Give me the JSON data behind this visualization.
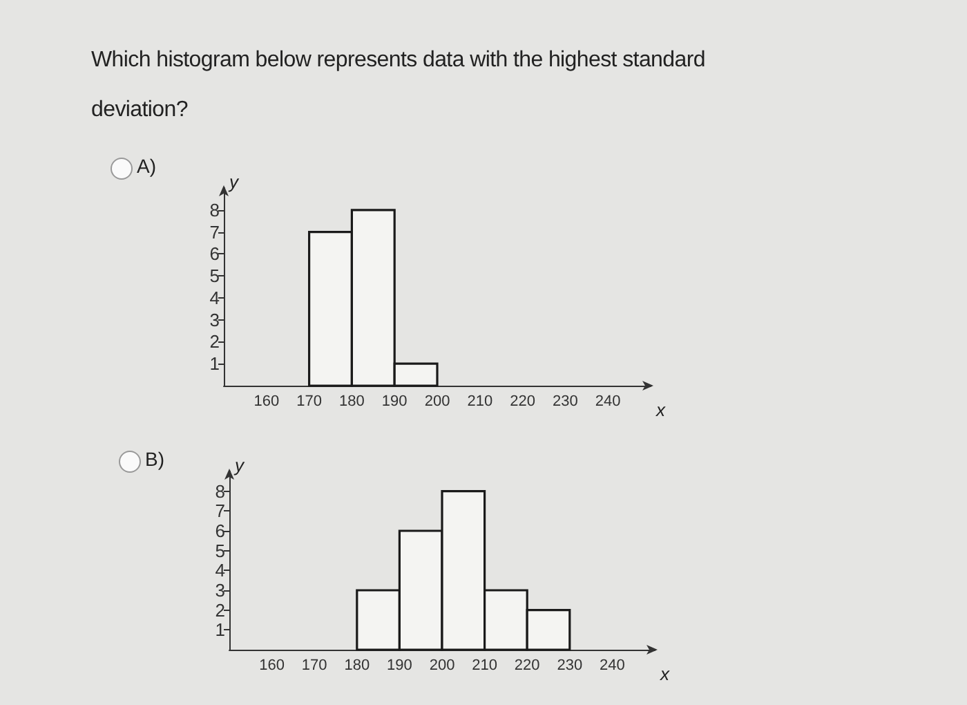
{
  "chart_data": [
    {
      "type": "histogram",
      "title": "Which histogram below represents data with the highest standard deviation?",
      "annotations": [
        "A)"
      ],
      "xlabel": "x",
      "ylabel": "y",
      "bins": [
        170,
        180,
        190,
        200
      ],
      "values": [
        7,
        8,
        1
      ],
      "color": "#f4f4f2",
      "xlim": [
        150,
        250
      ],
      "xticks": [
        160,
        170,
        180,
        190,
        200,
        210,
        220,
        230,
        240
      ],
      "ylim": [
        0,
        9
      ],
      "yticks": [
        1,
        2,
        3,
        4,
        5,
        6,
        7,
        8
      ]
    },
    {
      "type": "histogram",
      "annotations": [
        "B)"
      ],
      "xlabel": "x",
      "ylabel": "y",
      "bins": [
        180,
        190,
        200,
        210,
        220,
        230
      ],
      "values": [
        3,
        6,
        8,
        3,
        2
      ],
      "color": "#f4f4f2",
      "xlim": [
        150,
        250
      ],
      "xticks": [
        160,
        170,
        180,
        190,
        200,
        210,
        220,
        230,
        240
      ],
      "ylim": [
        0,
        9
      ],
      "yticks": [
        1,
        2,
        3,
        4,
        5,
        6,
        7,
        8
      ]
    }
  ]
}
